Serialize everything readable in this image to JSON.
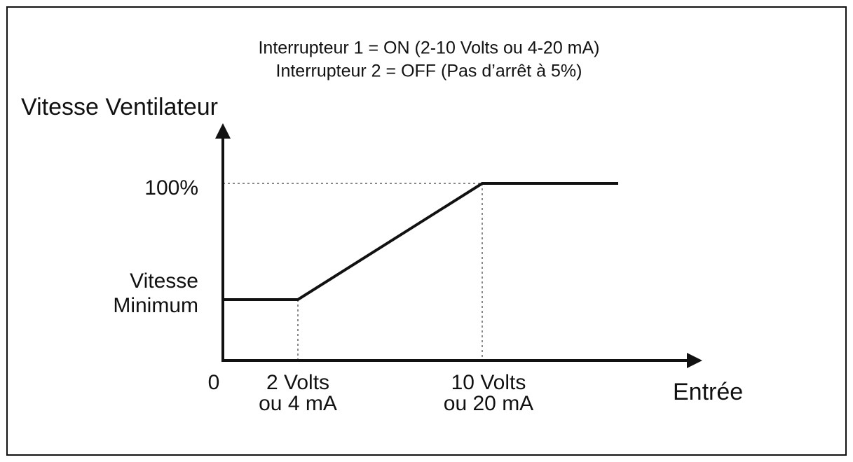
{
  "header": {
    "lines": [
      "Interrupteur 1 = ON (2-10 Volts ou 4-20 mA)",
      "Interrupteur 2 = OFF (Pas d’arrêt à 5%)"
    ]
  },
  "y_axis": {
    "label": "Vitesse Ventilateur",
    "labels": [
      {
        "lines": [
          "100%"
        ]
      },
      {
        "lines": [
          "Vitesse",
          "Minimum"
        ]
      }
    ]
  },
  "x_axis": {
    "label": "Entrée",
    "labels": [
      {
        "lines": [
          "0"
        ]
      },
      {
        "lines": [
          "2 Volts",
          "ou 4 mA"
        ]
      },
      {
        "lines": [
          "10 Volts",
          "ou 20 mA"
        ]
      }
    ]
  }
}
